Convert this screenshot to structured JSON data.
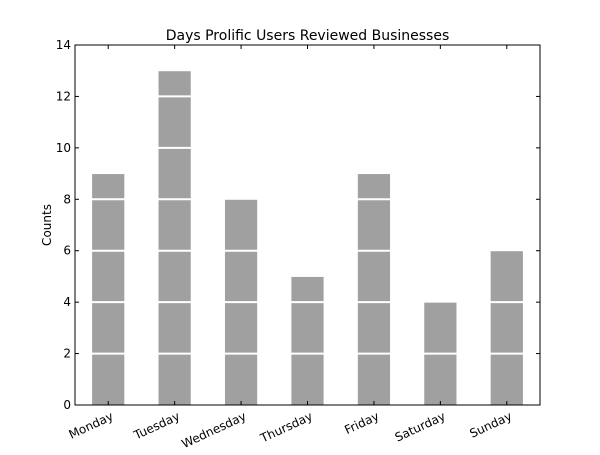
{
  "chart_data": {
    "type": "bar",
    "title": "Days Prolific Users Reviewed Businesses",
    "xlabel": "",
    "ylabel": "Counts",
    "categories": [
      "Monday",
      "Tuesday",
      "Wednesday",
      "Thursday",
      "Friday",
      "Saturday",
      "Sunday"
    ],
    "values": [
      9,
      13,
      8,
      5,
      9,
      4,
      6
    ],
    "ylim": [
      0,
      14
    ],
    "yticks": [
      0,
      2,
      4,
      6,
      8,
      10,
      12,
      14
    ],
    "bar_color": "#a0a0a0",
    "grid": false,
    "gridlines_color": "#ffffff"
  }
}
